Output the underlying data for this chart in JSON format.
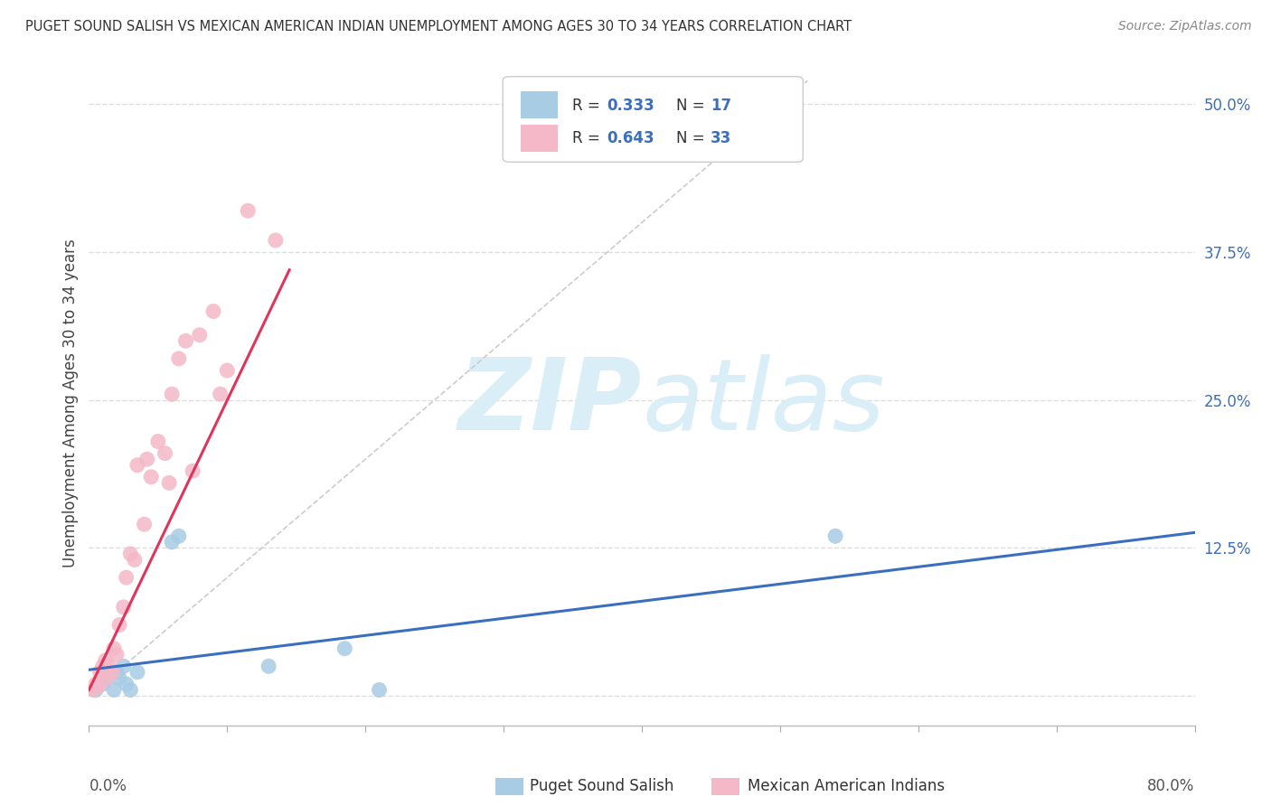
{
  "title": "PUGET SOUND SALISH VS MEXICAN AMERICAN INDIAN UNEMPLOYMENT AMONG AGES 30 TO 34 YEARS CORRELATION CHART",
  "source": "Source: ZipAtlas.com",
  "ylabel": "Unemployment Among Ages 30 to 34 years",
  "xlim": [
    0.0,
    0.8
  ],
  "ylim": [
    -0.025,
    0.52
  ],
  "yticks_right": [
    0.0,
    0.125,
    0.25,
    0.375,
    0.5
  ],
  "yticklabels_right": [
    "",
    "12.5%",
    "25.0%",
    "37.5%",
    "50.0%"
  ],
  "legend1_label": "Puget Sound Salish",
  "legend2_label": "Mexican American Indians",
  "R1": "0.333",
  "N1": "17",
  "R2": "0.643",
  "N2": "33",
  "blue_color": "#a8cce4",
  "pink_color": "#f4b8c8",
  "blue_line_color": "#3a6fbf",
  "pink_line_color": "#e0355a",
  "watermark_color": "#daeef8",
  "blue_scatter_x": [
    0.005,
    0.01,
    0.012,
    0.015,
    0.018,
    0.02,
    0.022,
    0.025,
    0.027,
    0.03,
    0.035,
    0.06,
    0.065,
    0.13,
    0.185,
    0.21,
    0.54
  ],
  "blue_scatter_y": [
    0.005,
    0.01,
    0.015,
    0.02,
    0.005,
    0.02,
    0.015,
    0.025,
    0.01,
    0.005,
    0.02,
    0.13,
    0.135,
    0.025,
    0.04,
    0.005,
    0.135
  ],
  "pink_scatter_x": [
    0.003,
    0.005,
    0.007,
    0.008,
    0.01,
    0.012,
    0.013,
    0.015,
    0.017,
    0.018,
    0.02,
    0.022,
    0.025,
    0.027,
    0.03,
    0.033,
    0.035,
    0.04,
    0.042,
    0.045,
    0.05,
    0.055,
    0.058,
    0.06,
    0.065,
    0.07,
    0.075,
    0.08,
    0.09,
    0.095,
    0.1,
    0.115,
    0.135
  ],
  "pink_scatter_y": [
    0.005,
    0.01,
    0.008,
    0.02,
    0.025,
    0.03,
    0.015,
    0.025,
    0.02,
    0.04,
    0.035,
    0.06,
    0.075,
    0.1,
    0.12,
    0.115,
    0.195,
    0.145,
    0.2,
    0.185,
    0.215,
    0.205,
    0.18,
    0.255,
    0.285,
    0.3,
    0.19,
    0.305,
    0.325,
    0.255,
    0.275,
    0.41,
    0.385
  ],
  "blue_line_x": [
    0.0,
    0.8
  ],
  "blue_line_y": [
    0.022,
    0.138
  ],
  "pink_line_x": [
    0.0,
    0.145
  ],
  "pink_line_y": [
    0.005,
    0.36
  ],
  "diag_line_x": [
    0.0,
    0.52
  ],
  "diag_line_y": [
    0.0,
    0.52
  ]
}
